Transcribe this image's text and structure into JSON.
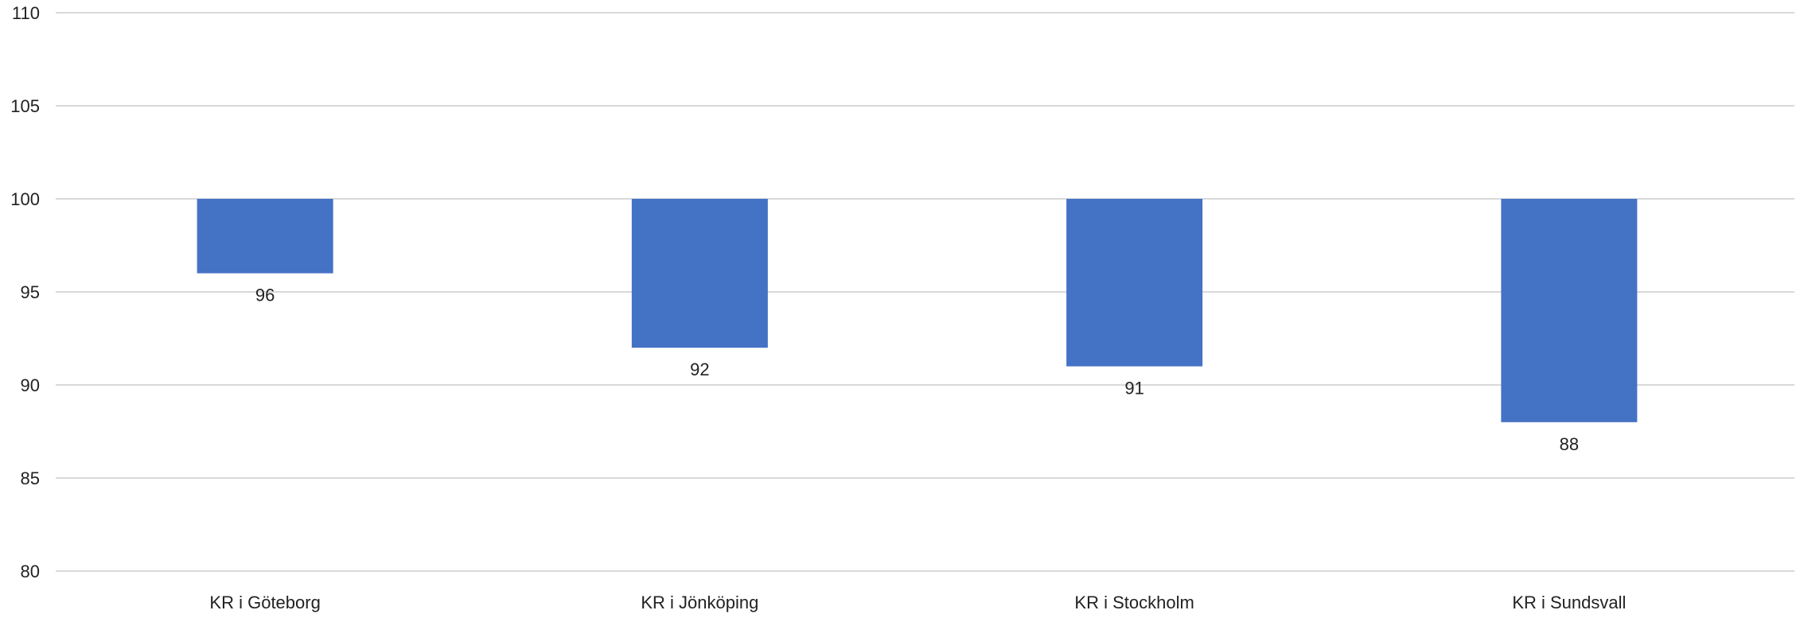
{
  "chart_data": {
    "type": "bar",
    "baseline": 100,
    "categories": [
      "KR i Göteborg",
      "KR i Jönköping",
      "KR i Stockholm",
      "KR i Sundsvall"
    ],
    "series": [
      {
        "values": [
          96,
          92,
          91,
          88
        ],
        "color": "#4472C4"
      }
    ],
    "data_labels": [
      "96",
      "92",
      "91",
      "88"
    ],
    "ylim": [
      80,
      110
    ],
    "yticks": [
      80,
      85,
      90,
      95,
      100,
      105,
      110
    ],
    "ytick_labels": [
      "80",
      "85",
      "90",
      "95",
      "100",
      "105",
      "110"
    ],
    "grid": true,
    "gridline_color": "#d9d9d9",
    "legend": "none",
    "title": "",
    "xlabel": "",
    "ylabel": ""
  }
}
